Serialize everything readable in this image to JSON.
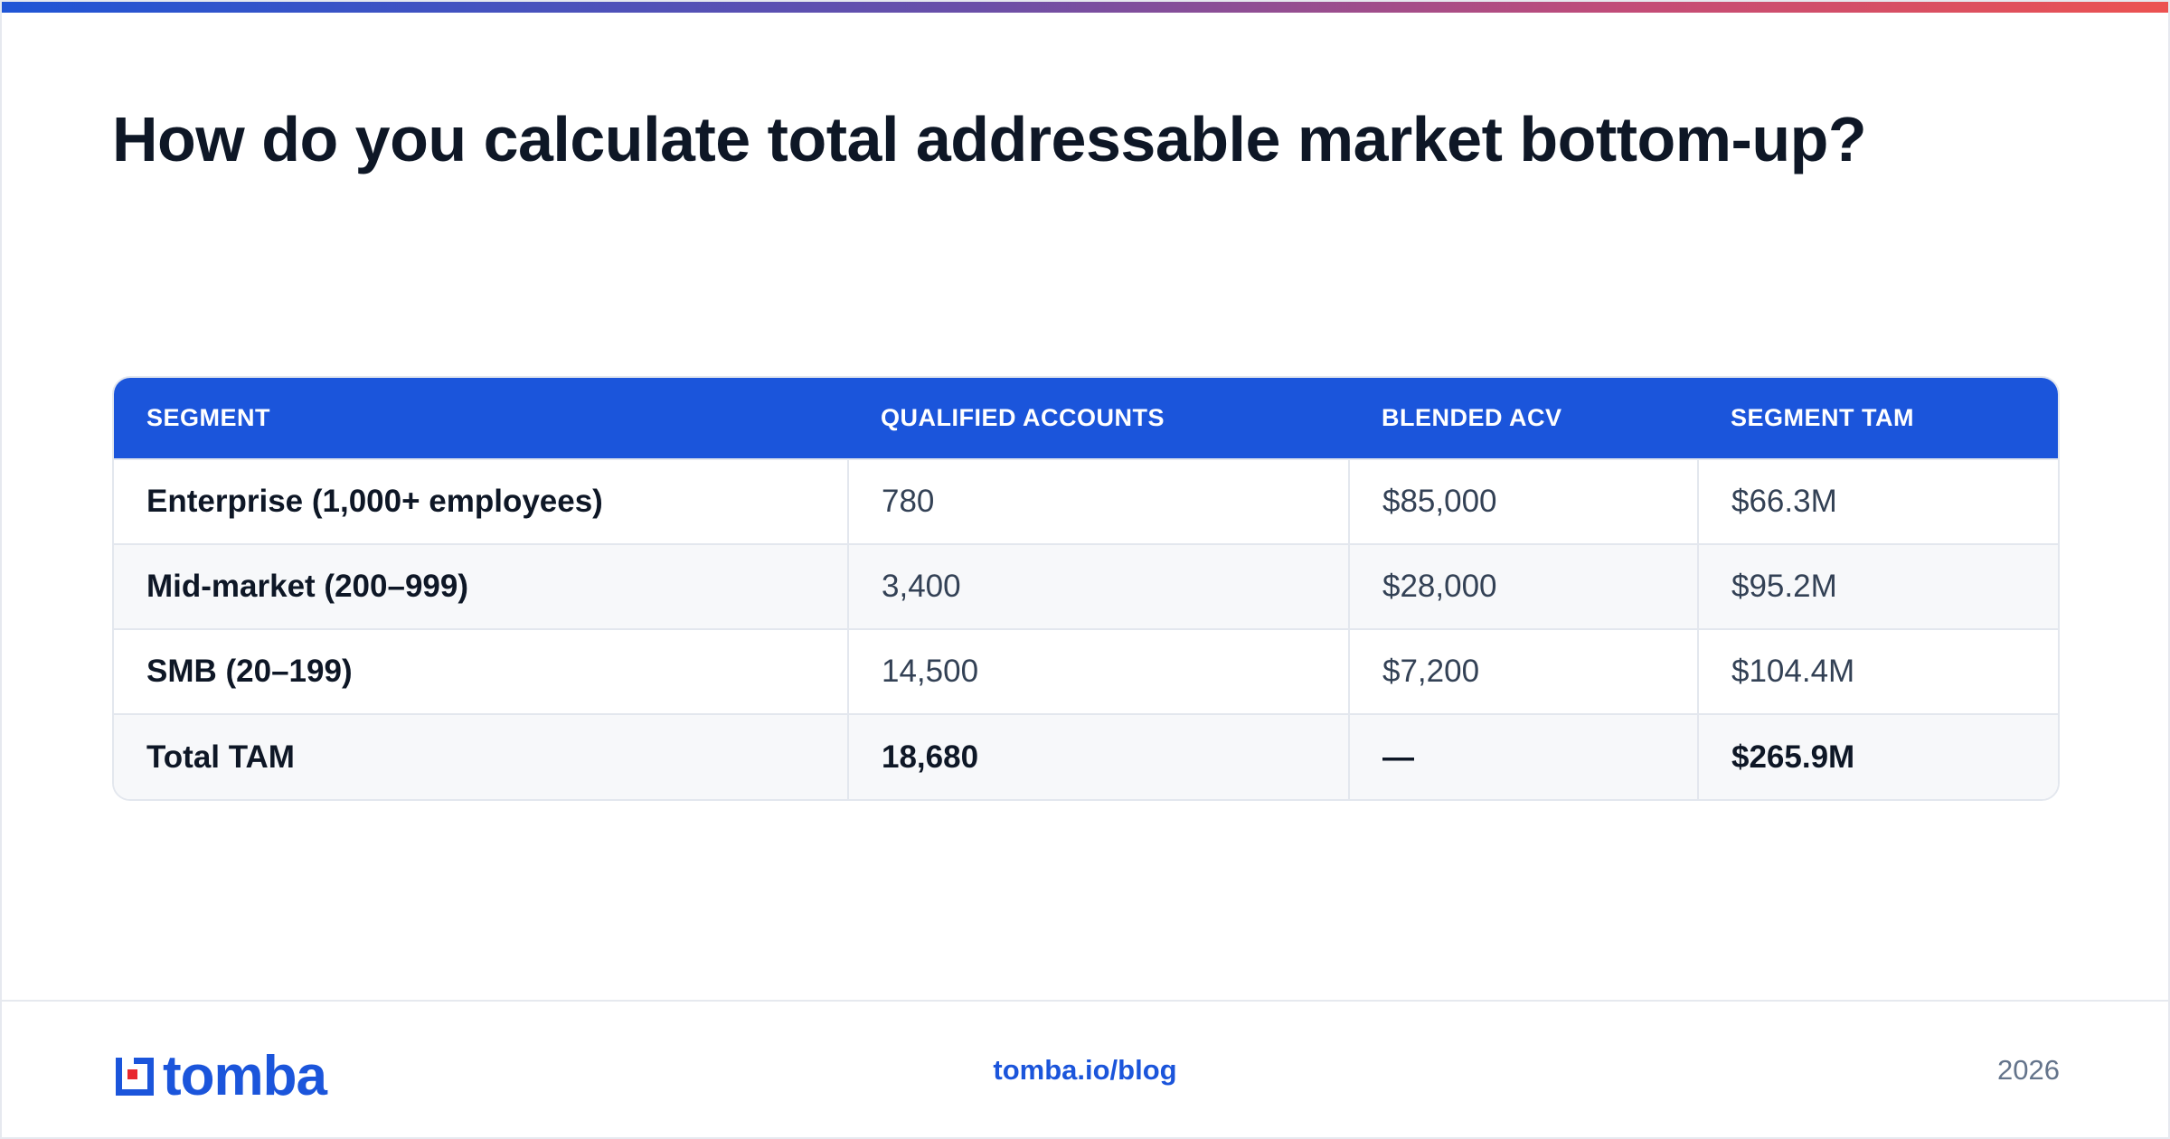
{
  "title": "How do you calculate total addressable market bottom-up?",
  "table": {
    "headers": [
      "SEGMENT",
      "QUALIFIED ACCOUNTS",
      "BLENDED ACV",
      "SEGMENT TAM"
    ],
    "rows": [
      [
        "Enterprise (1,000+ employees)",
        "780",
        "$85,000",
        "$66.3M"
      ],
      [
        "Mid-market (200–999)",
        "3,400",
        "$28,000",
        "$95.2M"
      ],
      [
        "SMB (20–199)",
        "14,500",
        "$7,200",
        "$104.4M"
      ],
      [
        "Total TAM",
        "18,680",
        "—",
        "$265.9M"
      ]
    ]
  },
  "footer": {
    "logo_text": "tomba",
    "link": "tomba.io/blog",
    "year": "2026"
  },
  "colors": {
    "accent": "#1b55db",
    "logo_mark_red": "#e8262d",
    "title": "#0e1726"
  },
  "icons": {
    "logo_mark": "tomba-logo-mark-icon"
  }
}
